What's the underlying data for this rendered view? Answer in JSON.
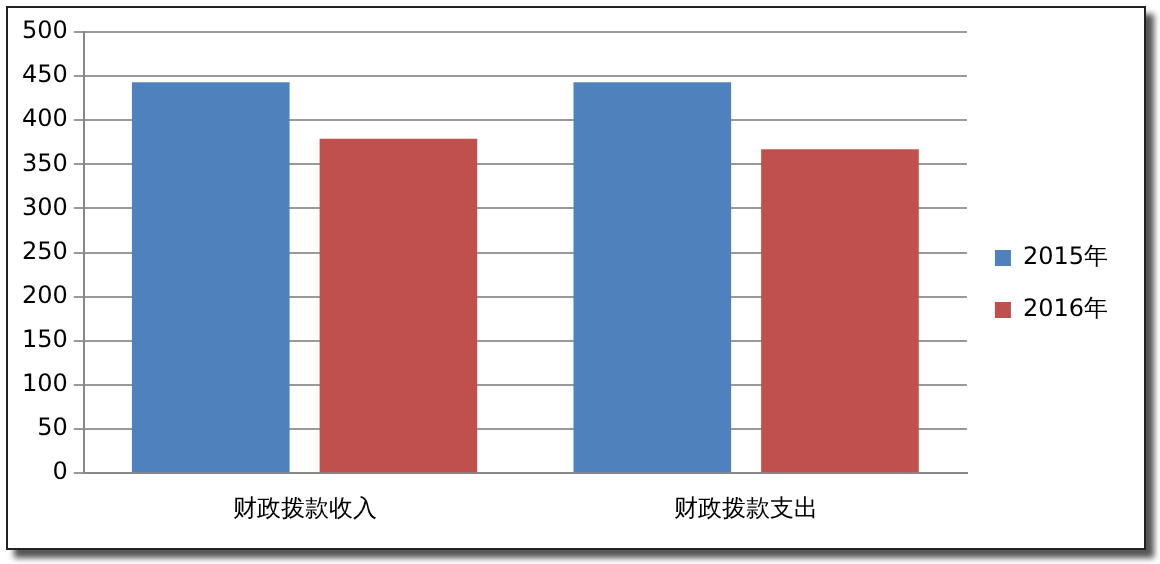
{
  "chart_data": {
    "type": "bar",
    "categories": [
      "财政拨款收入",
      "财政拨款支出"
    ],
    "series": [
      {
        "name": "2015年",
        "color": "#4f81bd",
        "values": [
          443,
          443
        ]
      },
      {
        "name": "2016年",
        "color": "#c0504d",
        "values": [
          379,
          367
        ]
      }
    ],
    "ylim": [
      0,
      500
    ],
    "yticks": [
      0,
      50,
      100,
      150,
      200,
      250,
      300,
      350,
      400,
      450,
      500
    ],
    "grid": "y",
    "legend": "right"
  }
}
